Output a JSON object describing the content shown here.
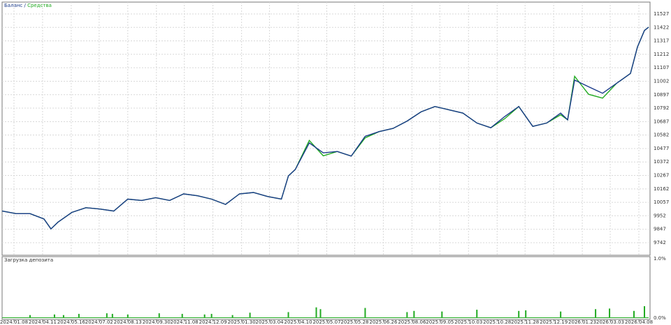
{
  "chart_data": [
    {
      "type": "line",
      "x": [
        0,
        20,
        40,
        60,
        70,
        80,
        100,
        120,
        140,
        160,
        180,
        200,
        220,
        240,
        260,
        280,
        300,
        320,
        340,
        360,
        380,
        400,
        410,
        420,
        440,
        460,
        480,
        500,
        520,
        540,
        560,
        580,
        600,
        620,
        640,
        660,
        680,
        700,
        720,
        740,
        760,
        780,
        800,
        810,
        820,
        840,
        860,
        880,
        900,
        910,
        920,
        926
      ],
      "series": [
        {
          "name": "Баланс",
          "color": "#1a3a8a",
          "values": [
            9989,
            9969,
            9969,
            9927,
            9850,
            9902,
            9979,
            10015,
            10005,
            9989,
            10082,
            10072,
            10093,
            10072,
            10123,
            10108,
            10082,
            10041,
            10123,
            10134,
            10103,
            10082,
            10263,
            10314,
            10521,
            10443,
            10454,
            10418,
            10572,
            10609,
            10634,
            10691,
            10763,
            10805,
            10779,
            10753,
            10676,
            10639,
            10727,
            10805,
            10650,
            10676,
            10753,
            10701,
            11011,
            10959,
            10908,
            10985,
            11063,
            11269,
            11398,
            11424
          ]
        },
        {
          "name": "Средства",
          "color": "#22aa22",
          "values": [
            9989,
            9969,
            9969,
            9927,
            9850,
            9902,
            9979,
            10015,
            10005,
            9989,
            10082,
            10072,
            10093,
            10072,
            10123,
            10108,
            10082,
            10041,
            10123,
            10134,
            10103,
            10082,
            10263,
            10314,
            10540,
            10420,
            10454,
            10418,
            10560,
            10609,
            10634,
            10691,
            10763,
            10805,
            10779,
            10753,
            10676,
            10639,
            10710,
            10805,
            10650,
            10676,
            10740,
            10701,
            11040,
            10900,
            10870,
            10985,
            11063,
            11269,
            11398,
            11424
          ]
        }
      ],
      "xlim": [
        0,
        926
      ],
      "xticks": [
        {
          "value": 17,
          "label": "2024.01.08"
        },
        {
          "value": 58,
          "label": "2024.04.11"
        },
        {
          "value": 99,
          "label": "2024.05.16"
        },
        {
          "value": 139,
          "label": "2024.07.02"
        },
        {
          "value": 180,
          "label": "2024.08.13"
        },
        {
          "value": 221,
          "label": "2024.09.30"
        },
        {
          "value": 261,
          "label": "2024.11.08"
        },
        {
          "value": 302,
          "label": "2024.12.09"
        },
        {
          "value": 343,
          "label": "2025.01.30"
        },
        {
          "value": 383,
          "label": "2025.03.04"
        },
        {
          "value": 424,
          "label": "2025.04.10"
        },
        {
          "value": 465,
          "label": "2025.05.07"
        },
        {
          "value": 505,
          "label": "2025.05.28"
        },
        {
          "value": 546,
          "label": "2025.06.26"
        },
        {
          "value": 587,
          "label": "2025.08.06"
        },
        {
          "value": 627,
          "label": "2025.09.05"
        },
        {
          "value": 668,
          "label": "2025.10.03"
        },
        {
          "value": 709,
          "label": "2025.10.28"
        },
        {
          "value": 749,
          "label": "2025.11.28"
        },
        {
          "value": 790,
          "label": "2025.12.19"
        },
        {
          "value": 831,
          "label": "2026.01.23"
        },
        {
          "value": 871,
          "label": "2026.03.03"
        },
        {
          "value": 912,
          "label": "2026.04.08"
        }
      ],
      "ylim": [
        9742,
        11527
      ],
      "yticks": [
        9742,
        9847,
        9952,
        10057,
        10162,
        10267,
        10372,
        10477,
        10582,
        10687,
        10792,
        10897,
        11002,
        11107,
        11212,
        11317,
        11422,
        11527
      ],
      "grid": true
    },
    {
      "type": "bar",
      "title": "Загрузка депозита",
      "x": [
        40,
        75,
        88,
        110,
        150,
        158,
        180,
        225,
        258,
        290,
        300,
        330,
        355,
        410,
        450,
        456,
        520,
        580,
        590,
        630,
        680,
        740,
        750,
        800,
        850,
        870,
        905,
        920
      ],
      "values": [
        0.05,
        0.06,
        0.05,
        0.07,
        0.08,
        0.07,
        0.06,
        0.08,
        0.07,
        0.06,
        0.07,
        0.05,
        0.09,
        0.1,
        0.18,
        0.15,
        0.17,
        0.1,
        0.12,
        0.11,
        0.14,
        0.12,
        0.13,
        0.11,
        0.15,
        0.16,
        0.12,
        0.2
      ],
      "color": "#22aa22",
      "xlim": [
        0,
        926
      ],
      "ylim": [
        0,
        1
      ],
      "yticks": [
        {
          "value": 0,
          "label": "0.0%"
        },
        {
          "value": 1,
          "label": "1.0%"
        }
      ]
    }
  ]
}
